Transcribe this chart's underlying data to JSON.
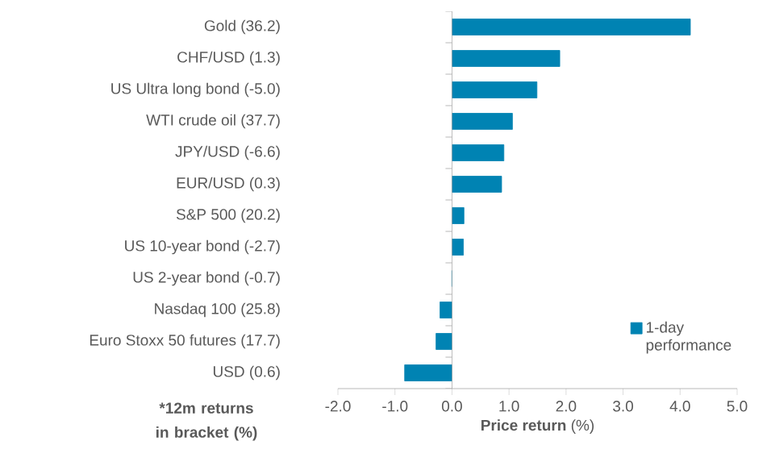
{
  "chart_data": {
    "type": "bar",
    "orientation": "horizontal",
    "categories": [
      "Gold (36.2)",
      "CHF/USD (1.3)",
      "US Ultra long bond (-5.0)",
      "WTI crude oil (37.7)",
      "JPY/USD (-6.6)",
      "EUR/USD (0.3)",
      "S&P 500 (20.2)",
      "US 10-year bond (-2.7)",
      "US 2-year bond (-0.7)",
      "Nasdaq 100 (25.8)",
      "Euro Stoxx 50 futures (17.7)",
      "USD (0.6)"
    ],
    "series": [
      {
        "name": "1-day performance",
        "color": "#0083b3",
        "values": [
          4.18,
          1.89,
          1.49,
          1.06,
          0.91,
          0.87,
          0.21,
          0.2,
          0.0,
          -0.21,
          -0.28,
          -0.83
        ]
      }
    ],
    "xlabel": "**Price return** (%)",
    "annotations": [
      "*12m returns in bracket (%)"
    ],
    "xlim": [
      -2,
      5
    ],
    "xticks": [
      {
        "value": -2,
        "label": "-2.0"
      },
      {
        "value": -1,
        "label": "-1.0"
      },
      {
        "value": 0,
        "label": "0.0"
      },
      {
        "value": 1,
        "label": "1.0"
      },
      {
        "value": 2,
        "label": "2.0"
      },
      {
        "value": 3,
        "label": "3.0"
      },
      {
        "value": 4,
        "label": "4.0"
      },
      {
        "value": 5,
        "label": "5.0"
      }
    ],
    "legend": "right"
  }
}
